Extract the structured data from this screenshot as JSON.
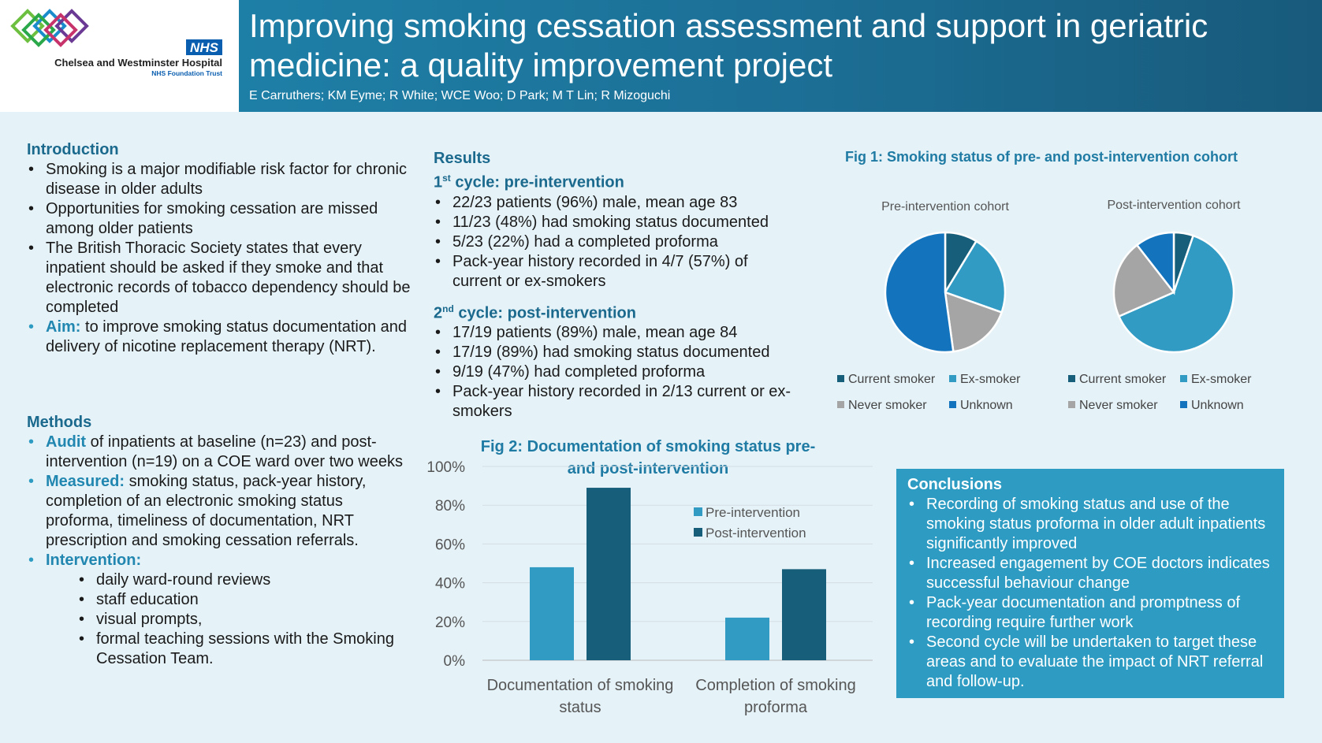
{
  "header": {
    "title": "Improving smoking cessation assessment and support in geriatric medicine: a quality improvement project",
    "authors": "E Carruthers; KM Eyme; R White; WCE Woo; D Park; M T Lin; R Mizoguchi",
    "logo_text": "Chelsea and Westminster Hospital",
    "logo_sub": "NHS Foundation Trust",
    "nhs": "NHS"
  },
  "introduction": {
    "heading": "Introduction",
    "items": [
      {
        "lead": "",
        "text": "Smoking is a major modifiable risk factor for chronic disease in older adults"
      },
      {
        "lead": "",
        "text": "Opportunities for smoking cessation are missed among older patients"
      },
      {
        "lead": "",
        "text": "The British Thoracic Society states that every inpatient should be asked if they smoke and that electronic records of tobacco dependency should be completed"
      },
      {
        "lead": "Aim:",
        "text": " to improve smoking status documentation and delivery of nicotine replacement therapy (NRT)."
      }
    ]
  },
  "methods": {
    "heading": "Methods",
    "items": [
      {
        "lead": "Audit",
        "text": " of inpatients at baseline (n=23) and post-intervention (n=19) on a COE ward over two weeks"
      },
      {
        "lead": "Measured:",
        "text": " smoking status, pack-year history, completion of an electronic smoking status proforma, timeliness of documentation, NRT prescription and smoking cessation referrals."
      },
      {
        "lead": "Intervention:",
        "text": ""
      }
    ],
    "intervention_items": [
      "daily ward-round reviews",
      "staff education",
      "visual prompts,",
      "formal teaching sessions with the Smoking Cessation Team."
    ]
  },
  "results": {
    "heading": "Results",
    "cycle1": {
      "num": "1",
      "sup": "st",
      "label": " cycle: pre-intervention",
      "items": [
        "22/23 patients (96%) male, mean age 83",
        "11/23 (48%) had smoking status documented",
        "5/23 (22%) had a completed proforma",
        "Pack-year history recorded in 4/7 (57%) of current or ex-smokers"
      ]
    },
    "cycle2": {
      "num": "2",
      "sup": "nd",
      "label": " cycle: post-intervention",
      "items": [
        "17/19 patients (89%) male, mean age 84",
        "17/19 (89%) had smoking status documented",
        "9/19 (47%) had completed proforma",
        "Pack-year history recorded in 2/13 current or ex-smokers"
      ]
    }
  },
  "conclusions": {
    "heading": "Conclusions",
    "items": [
      "Recording of smoking status and use of the smoking status proforma in older adult inpatients significantly improved",
      "Increased engagement by COE doctors indicates successful behaviour change",
      "Pack-year documentation and promptness of recording require further work",
      "Second cycle will be undertaken to target these areas and to evaluate the impact of NRT referral and follow-up."
    ]
  },
  "chart_data": [
    {
      "type": "pie",
      "title": "Fig 1: Smoking status of pre- and post-intervention cohort",
      "categories": [
        "Current smoker",
        "Ex-smoker",
        "Never smoker",
        "Unknown"
      ],
      "colors": [
        "#175e7b",
        "#319bc4",
        "#a5a5a5",
        "#1374bd"
      ],
      "legend": "bottom",
      "series": [
        {
          "name": "Pre-intervention cohort",
          "values": [
            2,
            5,
            4,
            12
          ]
        },
        {
          "name": "Post-intervention cohort",
          "values": [
            1,
            12,
            4,
            2
          ]
        }
      ]
    },
    {
      "type": "bar",
      "title": "Fig 2: Documentation of smoking status pre- and post-intervention",
      "categories": [
        "Documentation of smoking status",
        "Completion of smoking proforma"
      ],
      "ylim": [
        0,
        100
      ],
      "yticks": [
        "0%",
        "20%",
        "40%",
        "60%",
        "80%",
        "100%"
      ],
      "grid": true,
      "legend": "top-right",
      "series": [
        {
          "name": "Pre-intervention",
          "color": "#319bc4",
          "values": [
            48,
            22
          ]
        },
        {
          "name": "Post-intervention",
          "color": "#175e7b",
          "values": [
            89,
            47
          ]
        }
      ]
    }
  ]
}
